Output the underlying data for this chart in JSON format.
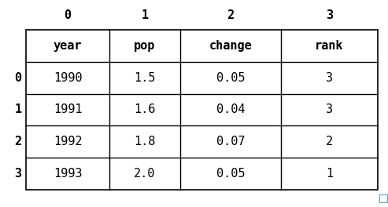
{
  "col_labels": [
    "0",
    "1",
    "2",
    "3"
  ],
  "row_labels": [
    "0",
    "1",
    "2",
    "3"
  ],
  "headers": [
    "year",
    "pop",
    "change",
    "rank"
  ],
  "rows": [
    [
      "1990",
      "1.5",
      "0.05",
      "3"
    ],
    [
      "1991",
      "1.6",
      "0.04",
      "3"
    ],
    [
      "1992",
      "1.8",
      "0.07",
      "2"
    ],
    [
      "1993",
      "2.0",
      "0.05",
      "1"
    ]
  ],
  "bg_color": "#ffffff",
  "text_color": "#000000",
  "header_fontsize": 11,
  "data_fontsize": 11,
  "col_label_fontsize": 11,
  "row_label_fontsize": 11,
  "font_family": "monospace",
  "small_rect_color": "#5b9bd5",
  "fig_width": 4.93,
  "fig_height": 2.64,
  "dpi": 100
}
